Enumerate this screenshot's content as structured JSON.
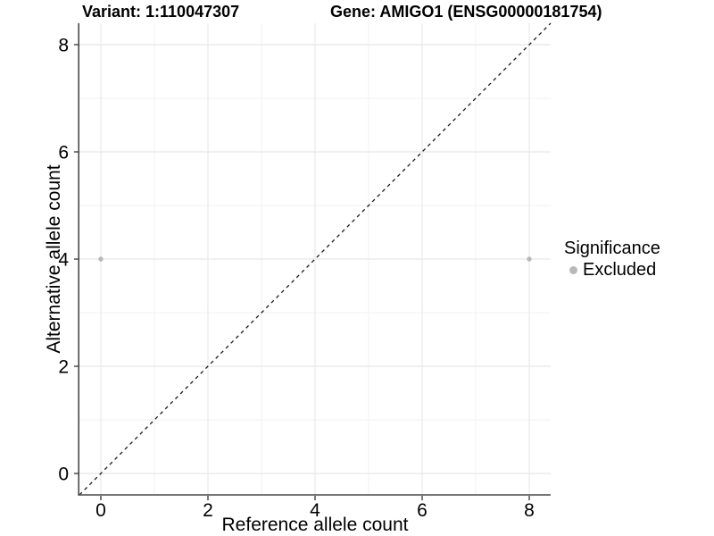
{
  "chart_data": {
    "type": "scatter",
    "titles": {
      "variant": "Variant: 1:110047307",
      "gene": "Gene: AMIGO1 (ENSG00000181754)"
    },
    "xlabel": "Reference allele count",
    "ylabel": "Alternative allele count",
    "xlim": [
      -0.4,
      8.4
    ],
    "ylim": [
      -0.4,
      8.4
    ],
    "xticks": [
      0,
      2,
      4,
      6,
      8
    ],
    "yticks": [
      0,
      2,
      4,
      6,
      8
    ],
    "minor_xticks": [
      1,
      3,
      5,
      7
    ],
    "minor_yticks": [
      1,
      3,
      5,
      7
    ],
    "grid": "major+minor",
    "series": [
      {
        "name": "Excluded",
        "color": "#b9b9b9",
        "point_radius": 2.7,
        "points": [
          [
            0,
            4
          ],
          [
            8,
            4
          ]
        ]
      }
    ],
    "reference_line": {
      "kind": "identity y=x",
      "style": "dashed",
      "color": "#1a1a1a"
    },
    "legend": {
      "title": "Significance",
      "position": "right",
      "items": [
        {
          "label": "Excluded",
          "color": "#b9b9b9"
        }
      ]
    },
    "colors": {
      "background": "#ffffff",
      "grid_major": "#e8e8e8",
      "grid_minor": "#f2f2f2",
      "axis_line": "#4a4a4a",
      "tick_mark": "#333333",
      "tick_label": "#000000"
    }
  }
}
